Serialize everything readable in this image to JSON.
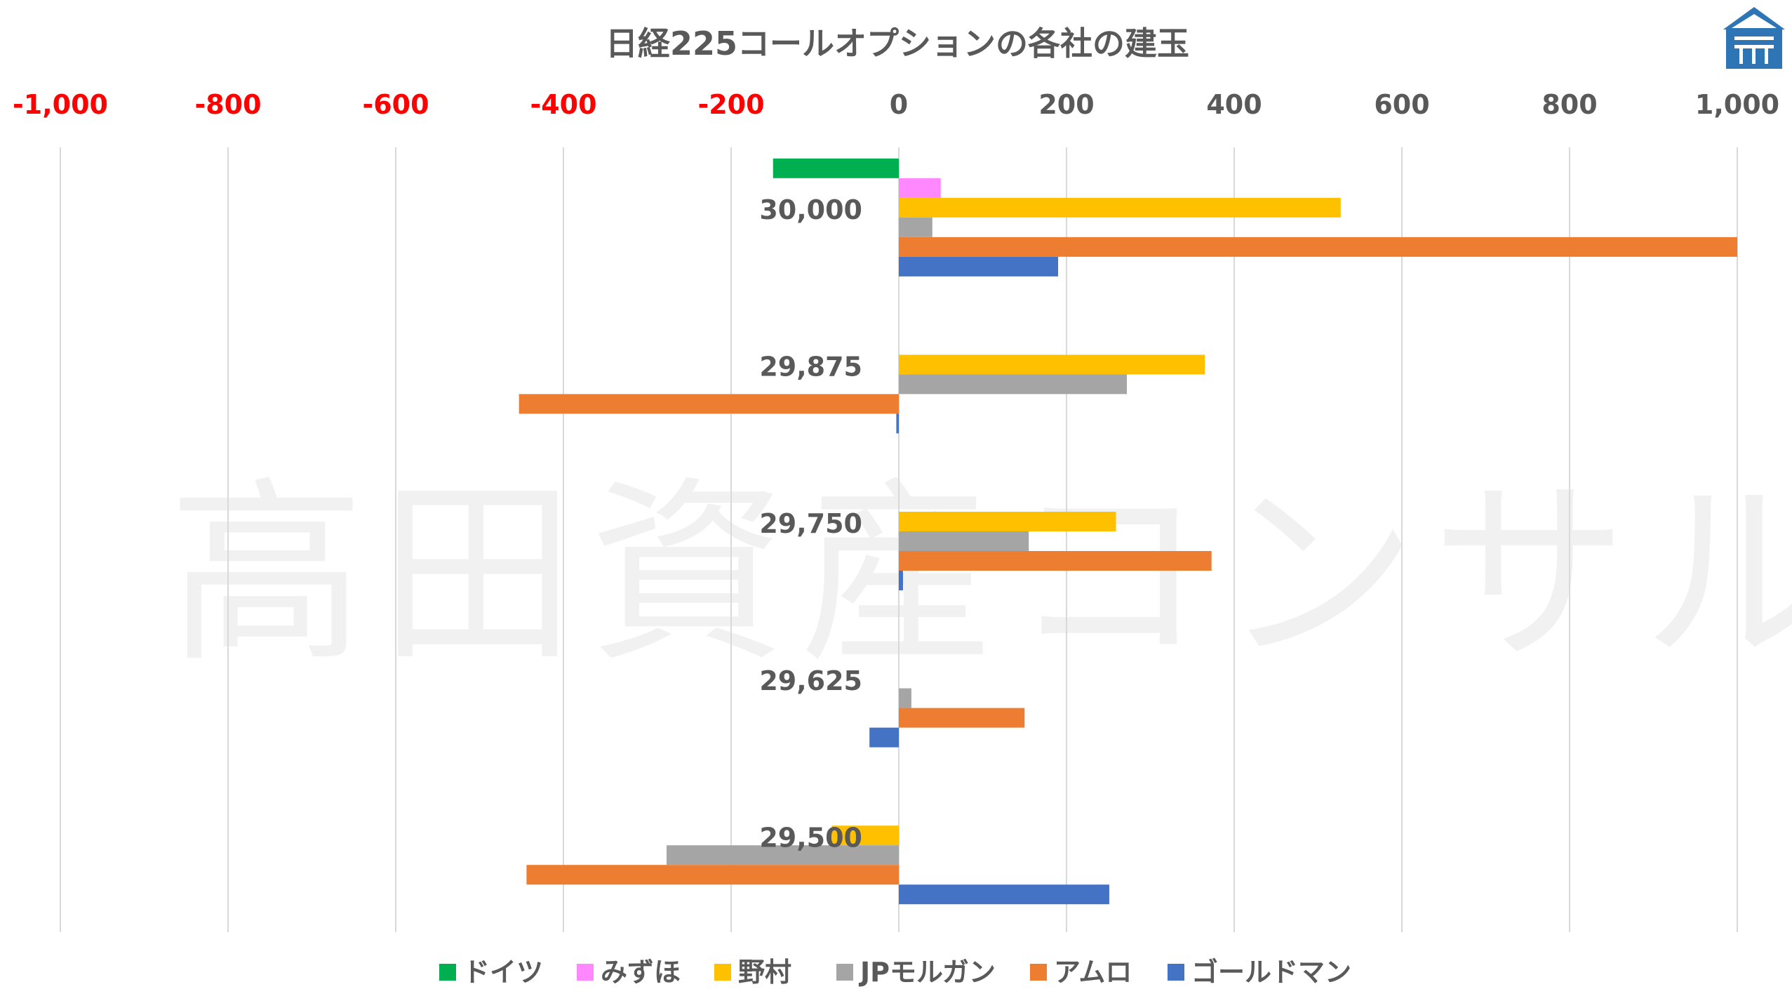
{
  "watermark": "高田資産コンサル",
  "colors": {
    "negative_tick": "#FF0000",
    "positive_tick": "#595959",
    "text": "#595959",
    "grid": "#D9D9D9",
    "logo": "#2E75B6"
  },
  "chart_data": {
    "type": "bar",
    "orientation": "horizontal",
    "title": "日経225コールオプションの各社の建玉",
    "xlabel": "",
    "ylabel": "",
    "xlim": [
      -1000,
      1000
    ],
    "x_ticks": [
      "-1,000",
      "-800",
      "-600",
      "-400",
      "-200",
      "0",
      "200",
      "400",
      "600",
      "800",
      "1,000"
    ],
    "x_tick_values": [
      -1000,
      -800,
      -600,
      -400,
      -200,
      0,
      200,
      400,
      600,
      800,
      1000
    ],
    "x_axis_position": "top",
    "grid": true,
    "legend_position": "bottom",
    "categories": [
      "30,000",
      "29,875",
      "29,750",
      "29,625",
      "29,500"
    ],
    "series": [
      {
        "name": "ドイツ",
        "color": "#00B050",
        "values": [
          -150,
          0,
          0,
          0,
          0
        ]
      },
      {
        "name": "みずほ",
        "color": "#FF88FF",
        "values": [
          50,
          0,
          0,
          0,
          0
        ]
      },
      {
        "name": "野村",
        "color": "#FFC000",
        "values": [
          527,
          365,
          259,
          0,
          -80
        ]
      },
      {
        "name": "JPモルガン",
        "color": "#A5A5A5",
        "values": [
          40,
          272,
          155,
          15,
          -277
        ]
      },
      {
        "name": "アムロ",
        "color": "#ED7D31",
        "values": [
          1000,
          -453,
          373,
          150,
          -444
        ]
      },
      {
        "name": "ゴールドマン",
        "color": "#4472C4",
        "values": [
          190,
          -3,
          5,
          -35,
          251
        ]
      }
    ]
  }
}
